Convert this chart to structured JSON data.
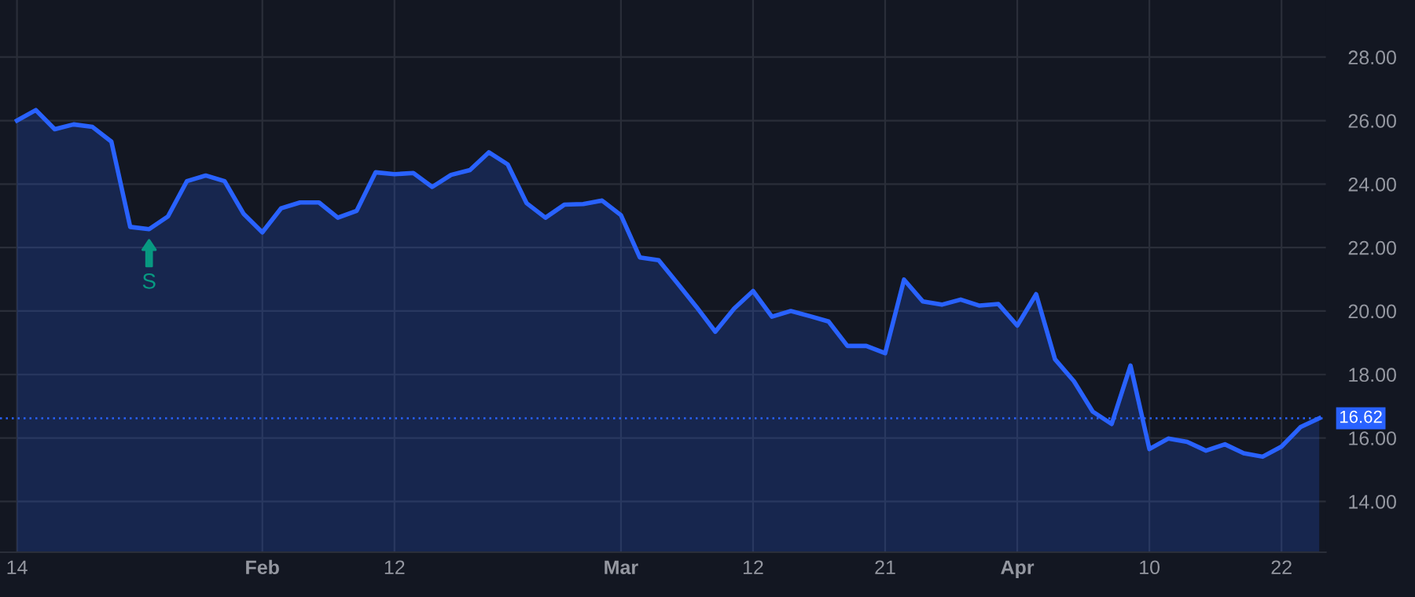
{
  "chart_data": {
    "type": "area",
    "categories": [
      "14",
      null,
      null,
      null,
      null,
      null,
      null,
      null,
      null,
      null,
      null,
      null,
      null,
      "Feb",
      null,
      null,
      null,
      null,
      null,
      null,
      "12",
      null,
      null,
      null,
      null,
      null,
      null,
      null,
      null,
      null,
      null,
      null,
      "Mar",
      null,
      null,
      null,
      null,
      null,
      null,
      "12",
      null,
      null,
      null,
      null,
      null,
      null,
      "21",
      null,
      null,
      null,
      null,
      null,
      null,
      "Apr",
      null,
      null,
      null,
      null,
      null,
      null,
      "10",
      null,
      null,
      null,
      null,
      null,
      null,
      "22",
      null,
      null
    ],
    "series": [
      {
        "color": "#2962ff",
        "values": [
          26.0,
          26.33,
          25.73,
          25.88,
          25.8,
          25.34,
          22.65,
          22.58,
          22.98,
          24.09,
          24.27,
          24.09,
          23.07,
          22.48,
          23.24,
          23.42,
          23.42,
          22.94,
          23.16,
          24.37,
          24.31,
          24.35,
          23.91,
          24.29,
          24.44,
          25.0,
          24.62,
          23.4,
          22.94,
          23.35,
          23.37,
          23.48,
          23.02,
          21.69,
          21.6,
          20.87,
          20.13,
          19.35,
          20.08,
          20.63,
          19.82,
          20.0,
          19.84,
          19.67,
          18.9,
          18.9,
          18.67,
          20.99,
          20.3,
          20.2,
          20.36,
          20.17,
          20.22,
          19.54,
          20.53,
          18.48,
          17.79,
          16.83,
          16.44,
          18.28,
          15.65,
          15.98,
          15.88,
          15.6,
          15.8,
          15.52,
          15.41,
          15.73,
          16.34,
          16.62
        ]
      }
    ],
    "ylim": [
      12.4,
      29.8
    ],
    "yticks": [
      {
        "value": 14,
        "label": "14.00"
      },
      {
        "value": 16,
        "label": "16.00"
      },
      {
        "value": 18,
        "label": "18.00"
      },
      {
        "value": 20,
        "label": "20.00"
      },
      {
        "value": 22,
        "label": "22.00"
      },
      {
        "value": 24,
        "label": "24.00"
      },
      {
        "value": 26,
        "label": "26.00"
      },
      {
        "value": 28,
        "label": "28.00"
      }
    ],
    "ref_lines": [
      {
        "axis": "y",
        "value": 16.62,
        "label": "16.62",
        "color": "#2962ff",
        "line_style": "dotted"
      }
    ],
    "annotations": [
      {
        "text": "S",
        "y": 22.58
      }
    ],
    "grid": true
  }
}
